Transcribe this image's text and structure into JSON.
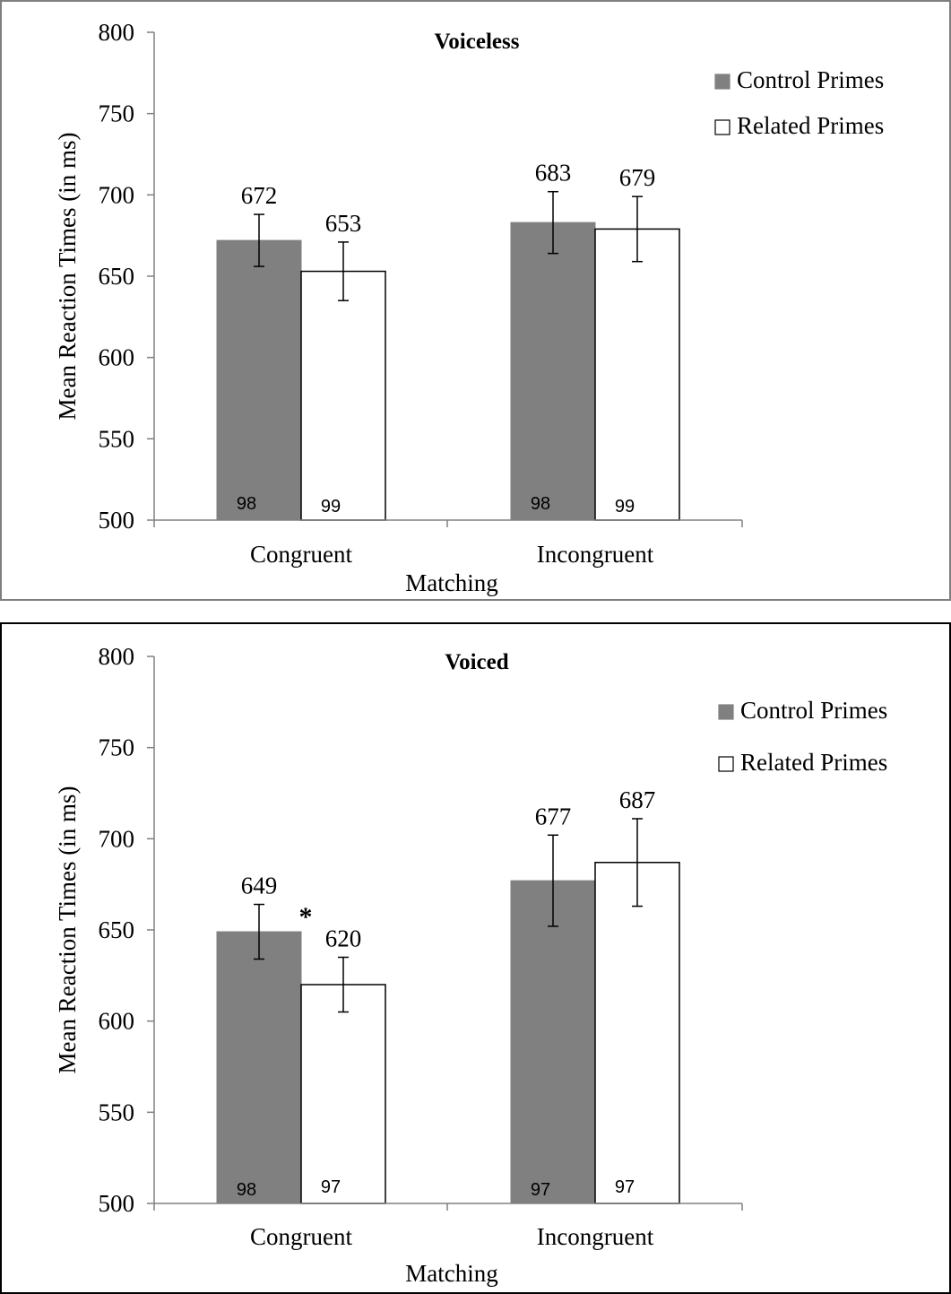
{
  "chart_data": [
    {
      "type": "bar",
      "title": "Voiceless",
      "xlabel": "Matching",
      "ylabel": "Mean Reaction Times (in ms)",
      "ylim": [
        500,
        800
      ],
      "yticks": [
        500,
        550,
        600,
        650,
        700,
        750,
        800
      ],
      "categories": [
        "Congruent",
        "Incongruent"
      ],
      "legend_position": "top-right",
      "series": [
        {
          "name": "Control Primes",
          "color": "#808080",
          "values": [
            672,
            683
          ],
          "error": [
            16,
            19
          ],
          "bar_labels": [
            "98",
            "98"
          ]
        },
        {
          "name": "Related Primes",
          "color": "#ffffff",
          "values": [
            653,
            679
          ],
          "error": [
            18,
            20
          ],
          "bar_labels": [
            "99",
            "99"
          ]
        }
      ],
      "annotations": []
    },
    {
      "type": "bar",
      "title": "Voiced",
      "xlabel": "Matching",
      "ylabel": "Mean Reaction Times (in ms)",
      "ylim": [
        500,
        800
      ],
      "yticks": [
        500,
        550,
        600,
        650,
        700,
        750,
        800
      ],
      "categories": [
        "Congruent",
        "Incongruent"
      ],
      "legend_position": "top-right",
      "series": [
        {
          "name": "Control Primes",
          "color": "#808080",
          "values": [
            649,
            677
          ],
          "error": [
            15,
            25
          ],
          "bar_labels": [
            "98",
            "97"
          ]
        },
        {
          "name": "Related Primes",
          "color": "#ffffff",
          "values": [
            620,
            687
          ],
          "error": [
            15,
            24
          ],
          "bar_labels": [
            "97",
            "97"
          ]
        }
      ],
      "annotations": [
        "*"
      ]
    }
  ]
}
